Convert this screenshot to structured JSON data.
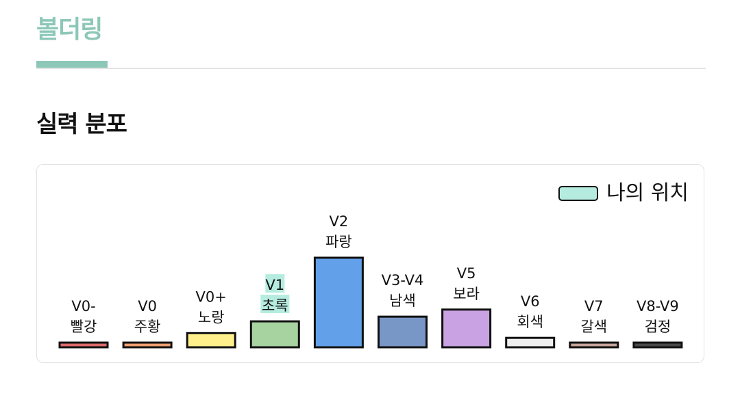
{
  "header": {
    "title": "볼더링"
  },
  "section": {
    "title": "실력 분포"
  },
  "legend": {
    "label": "나의 위치",
    "color": "#b6ece0"
  },
  "chart_data": {
    "type": "bar",
    "categories": [
      {
        "grade": "V0-",
        "color_name": "빨강"
      },
      {
        "grade": "V0",
        "color_name": "주황"
      },
      {
        "grade": "V0+",
        "color_name": "노랑"
      },
      {
        "grade": "V1",
        "color_name": "초록"
      },
      {
        "grade": "V2",
        "color_name": "파랑"
      },
      {
        "grade": "V3-V4",
        "color_name": "남색"
      },
      {
        "grade": "V5",
        "color_name": "보라"
      },
      {
        "grade": "V6",
        "color_name": "회색"
      },
      {
        "grade": "V7",
        "color_name": "갈색"
      },
      {
        "grade": "V8-V9",
        "color_name": "검정"
      }
    ],
    "values": [
      1,
      1,
      3,
      5.5,
      19,
      6.5,
      8,
      2,
      1,
      1
    ],
    "colors": [
      "#e06a6a",
      "#f0a070",
      "#fff08c",
      "#a6d3a0",
      "#62a0ea",
      "#7896c6",
      "#c8a2e2",
      "#eeeeee",
      "#c6a49a",
      "#4a4a4a"
    ],
    "highlight_index": 3,
    "highlight_color": "#b6ece0",
    "ylim": [
      0,
      19
    ],
    "grid": false,
    "legend_position": "top-right"
  }
}
